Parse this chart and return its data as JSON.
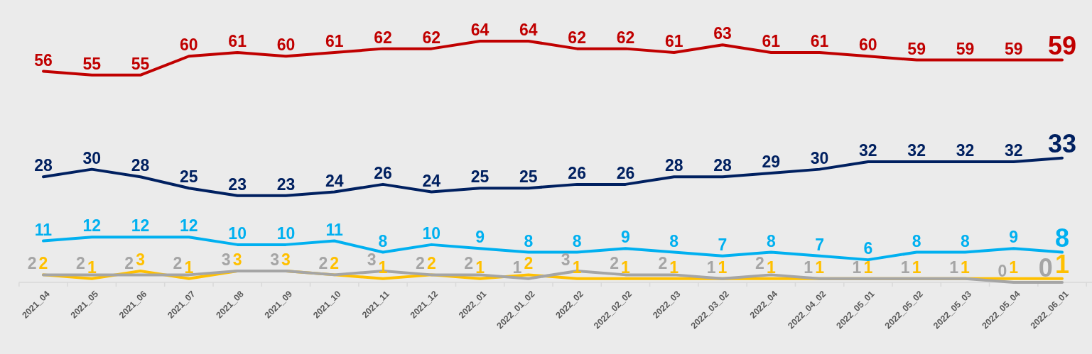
{
  "chart_data": {
    "type": "line",
    "data_labels": true,
    "line_style": "solid",
    "categories": [
      "2021_04",
      "2021_05",
      "2021_06",
      "2021_07",
      "2021_08",
      "2021_09",
      "2021_10",
      "2021_11",
      "2021_12",
      "2022_01",
      "2022_01_02",
      "2022_02",
      "2022_02_02",
      "2022_03",
      "2022_03_02",
      "2022_04",
      "2022_04_02",
      "2022_05_01",
      "2022_05_02",
      "2022_05_03",
      "2022_05_04",
      "2022_06_01"
    ],
    "series": [
      {
        "color": "#c00000",
        "values": [
          56,
          55,
          55,
          60,
          61,
          60,
          61,
          62,
          62,
          64,
          64,
          62,
          62,
          61,
          63,
          61,
          61,
          60,
          59,
          59,
          59,
          59
        ]
      },
      {
        "color": "#002060",
        "values": [
          28,
          30,
          28,
          25,
          23,
          23,
          24,
          26,
          24,
          25,
          25,
          26,
          26,
          28,
          28,
          29,
          30,
          32,
          32,
          32,
          32,
          33
        ]
      },
      {
        "color": "#00b0f0",
        "values": [
          11,
          12,
          12,
          12,
          10,
          10,
          11,
          8,
          10,
          9,
          8,
          8,
          9,
          8,
          7,
          8,
          7,
          6,
          8,
          8,
          9,
          8
        ]
      },
      {
        "color": "#ffc000",
        "values": [
          2,
          1,
          3,
          1,
          3,
          3,
          2,
          1,
          2,
          1,
          2,
          1,
          1,
          1,
          1,
          1,
          1,
          1,
          1,
          1,
          1,
          1
        ]
      },
      {
        "color": "#a5a5a5",
        "values": [
          2,
          2,
          2,
          2,
          3,
          3,
          2,
          3,
          2,
          2,
          1,
          3,
          2,
          2,
          1,
          2,
          1,
          1,
          1,
          1,
          0,
          0
        ]
      }
    ]
  }
}
